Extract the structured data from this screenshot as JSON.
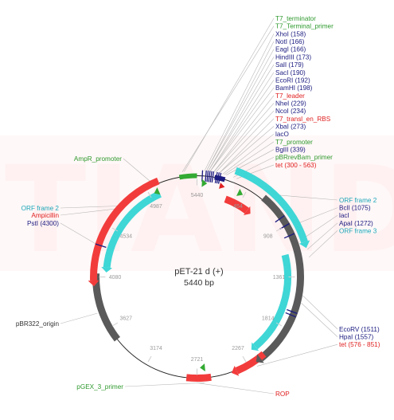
{
  "map": {
    "name": "pET-21 d (+)",
    "length": "5440 bp",
    "watermark": "TIANDZ",
    "ticks": [
      "5440",
      "454",
      "908",
      "1361",
      "1814",
      "2267",
      "2721",
      "3174",
      "3627",
      "4080",
      "4534",
      "4987"
    ]
  },
  "colors": {
    "gene_red": "#f23c3c",
    "promoter_green": "#33aa33",
    "orf_cyan": "#3fd6d6",
    "origin_gray": "#5a5a5a",
    "site_navy": "#1a1a80",
    "leader_red": "#e02020",
    "primer_green": "#2e9a2e",
    "orf_label": "#1aa6b8"
  },
  "top_labels": [
    {
      "text": "T7_terminator",
      "color": "#2e9a2e"
    },
    {
      "text": "T7_Terminal_primer",
      "color": "#2e9a2e"
    },
    {
      "text": "XhoI (158)",
      "color": "#1a1a80"
    },
    {
      "text": "NotI (166)",
      "color": "#1a1a80"
    },
    {
      "text": "EagI (166)",
      "color": "#1a1a80"
    },
    {
      "text": "HindIII (173)",
      "color": "#1a1a80"
    },
    {
      "text": "SalI (179)",
      "color": "#1a1a80"
    },
    {
      "text": "SacI (190)",
      "color": "#1a1a80"
    },
    {
      "text": "EcoRI (192)",
      "color": "#1a1a80"
    },
    {
      "text": "BamHI (198)",
      "color": "#1a1a80"
    },
    {
      "text": "T7_leader",
      "color": "#e02020"
    },
    {
      "text": "NheI (229)",
      "color": "#1a1a80"
    },
    {
      "text": "NcoI (234)",
      "color": "#1a1a80"
    },
    {
      "text": "T7_transl_en_RBS",
      "color": "#e02020"
    },
    {
      "text": "XbaI (273)",
      "color": "#1a1a80"
    },
    {
      "text": "lacO",
      "color": "#1a1a80"
    },
    {
      "text": "T7_promoter",
      "color": "#2e9a2e"
    },
    {
      "text": "BglII (339)",
      "color": "#1a1a80"
    },
    {
      "text": "pBRrevBam_primer",
      "color": "#2e9a2e"
    },
    {
      "text": "tet (300 - 563)",
      "color": "#e02020"
    }
  ],
  "right_labels": [
    {
      "text": "ORF frame 2",
      "color": "#1aa6b8"
    },
    {
      "text": "BclI (1075)",
      "color": "#1a1a80"
    },
    {
      "text": "lacI",
      "color": "#1a1a80"
    },
    {
      "text": "ApaI (1272)",
      "color": "#1a1a80"
    },
    {
      "text": "ORF frame 3",
      "color": "#1aa6b8"
    }
  ],
  "right_lower_labels": [
    {
      "text": "EcoRV (1511)",
      "color": "#1a1a80"
    },
    {
      "text": "HpaI (1557)",
      "color": "#1a1a80"
    },
    {
      "text": "tet (576 - 851)",
      "color": "#e02020"
    }
  ],
  "left_labels": [
    {
      "text": "AmpR_promoter",
      "color": "#2e9a2e"
    },
    {
      "text": "ORF frame 2",
      "color": "#1aa6b8"
    },
    {
      "text": "Ampicillin",
      "color": "#e02020"
    },
    {
      "text": "PstI (4300)",
      "color": "#1a1a80"
    },
    {
      "text": "pBR322_origin",
      "color": "#333333"
    },
    {
      "text": "pGEX_3_primer",
      "color": "#2e9a2e"
    }
  ],
  "bottom_labels": [
    {
      "text": "ROP",
      "color": "#e02020"
    }
  ]
}
